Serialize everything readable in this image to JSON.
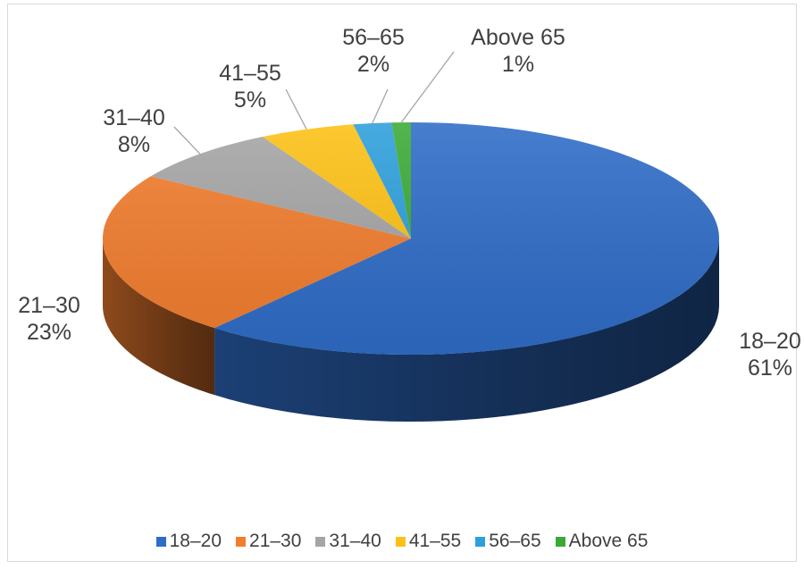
{
  "chart_data": {
    "type": "pie",
    "title": "",
    "categories": [
      "18–20",
      "21–30",
      "31–40",
      "41–55",
      "56–65",
      "Above 65"
    ],
    "values": [
      61,
      23,
      8,
      5,
      2,
      1
    ],
    "data_labels": [
      {
        "category": "18–20",
        "percent": "61%"
      },
      {
        "category": "21–30",
        "percent": "23%"
      },
      {
        "category": "31–40",
        "percent": "8%"
      },
      {
        "category": "41–55",
        "percent": "5%"
      },
      {
        "category": "56–65",
        "percent": "2%"
      },
      {
        "category": "Above 65",
        "percent": "1%"
      }
    ],
    "colors": [
      "#2f6cc7",
      "#f27d2e",
      "#a5a5a5",
      "#fdc114",
      "#2d9fdb",
      "#3aaa35"
    ],
    "legend_position": "bottom",
    "style": "3d"
  }
}
